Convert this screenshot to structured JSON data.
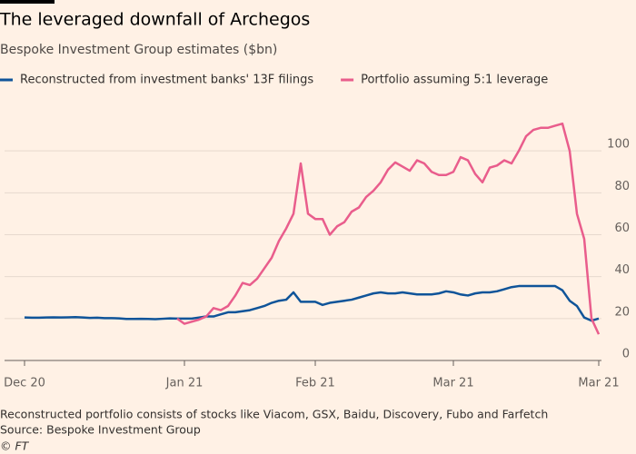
{
  "chart_data": {
    "type": "line",
    "title": "The leveraged downfall of Archegos",
    "subtitle": "Bespoke Investment Group estimates ($bn)",
    "categories": [
      "Dec 20",
      null,
      null,
      null,
      null,
      null,
      null,
      null,
      null,
      null,
      null,
      null,
      null,
      null,
      null,
      null,
      null,
      null,
      null,
      null,
      null,
      null,
      "Jan 21",
      null,
      null,
      null,
      null,
      null,
      null,
      null,
      null,
      null,
      null,
      null,
      null,
      null,
      null,
      null,
      null,
      null,
      "Feb 21",
      null,
      null,
      null,
      null,
      null,
      null,
      null,
      null,
      null,
      null,
      null,
      null,
      null,
      null,
      null,
      null,
      null,
      null,
      "Mar 21",
      null,
      null,
      null,
      null,
      null,
      null,
      null,
      null,
      null,
      null,
      null,
      null,
      null,
      null,
      null,
      null,
      null,
      null,
      null,
      "Mar 21"
    ],
    "series": [
      {
        "name": "Reconstructed from investment banks' 13F filings",
        "color": "#0f5499",
        "values": [
          20.5,
          20.4,
          20.4,
          20.5,
          20.6,
          20.5,
          20.6,
          20.7,
          20.5,
          20.3,
          20.4,
          20.2,
          20.2,
          20.1,
          19.8,
          19.8,
          19.9,
          19.8,
          19.7,
          19.9,
          20.1,
          20,
          20,
          20,
          20.5,
          21,
          21,
          22,
          23,
          23,
          23.5,
          24,
          25,
          26,
          27.5,
          28.5,
          29,
          32.5,
          28,
          28,
          28,
          26.5,
          27.5,
          28,
          28.5,
          29,
          30,
          31,
          32,
          32.5,
          32,
          32,
          32.5,
          32,
          31.5,
          31.5,
          31.5,
          32,
          33,
          32.5,
          31.5,
          31,
          32,
          32.5,
          32.5,
          33,
          34,
          35,
          35.5,
          35.5,
          35.5,
          35.5,
          35.5,
          35.5,
          33.5,
          28.5,
          26,
          20.5,
          19,
          20
        ]
      },
      {
        "name": "Portfolio assuming 5:1 leverage",
        "color": "#e95d8c",
        "values": [
          null,
          null,
          null,
          null,
          null,
          null,
          null,
          null,
          null,
          null,
          null,
          null,
          null,
          null,
          null,
          null,
          null,
          null,
          null,
          null,
          null,
          20,
          17.5,
          18.5,
          19.5,
          21,
          25,
          24,
          26,
          31,
          37,
          36,
          39,
          44,
          49,
          57,
          63,
          70,
          94,
          70,
          67.5,
          67.5,
          60,
          64,
          66,
          71,
          73,
          78,
          81,
          85,
          91,
          94.5,
          92.5,
          90.5,
          95.5,
          94,
          90,
          88.5,
          88.5,
          90,
          97,
          95.5,
          89,
          85,
          92,
          93,
          95.5,
          94,
          100,
          107,
          110,
          111,
          111,
          112,
          113,
          100,
          70,
          58,
          20,
          12.5
        ]
      }
    ],
    "ylim": [
      0,
      120
    ],
    "yticks": [
      0,
      20,
      40,
      60,
      80,
      100
    ],
    "grid": true,
    "notes": [
      "Reconstructed portfolio consists of stocks like Viacom, GSX, Baidu, Discovery, Fubo and Farfetch",
      "Source: Bespoke Investment Group",
      "© FT"
    ]
  }
}
